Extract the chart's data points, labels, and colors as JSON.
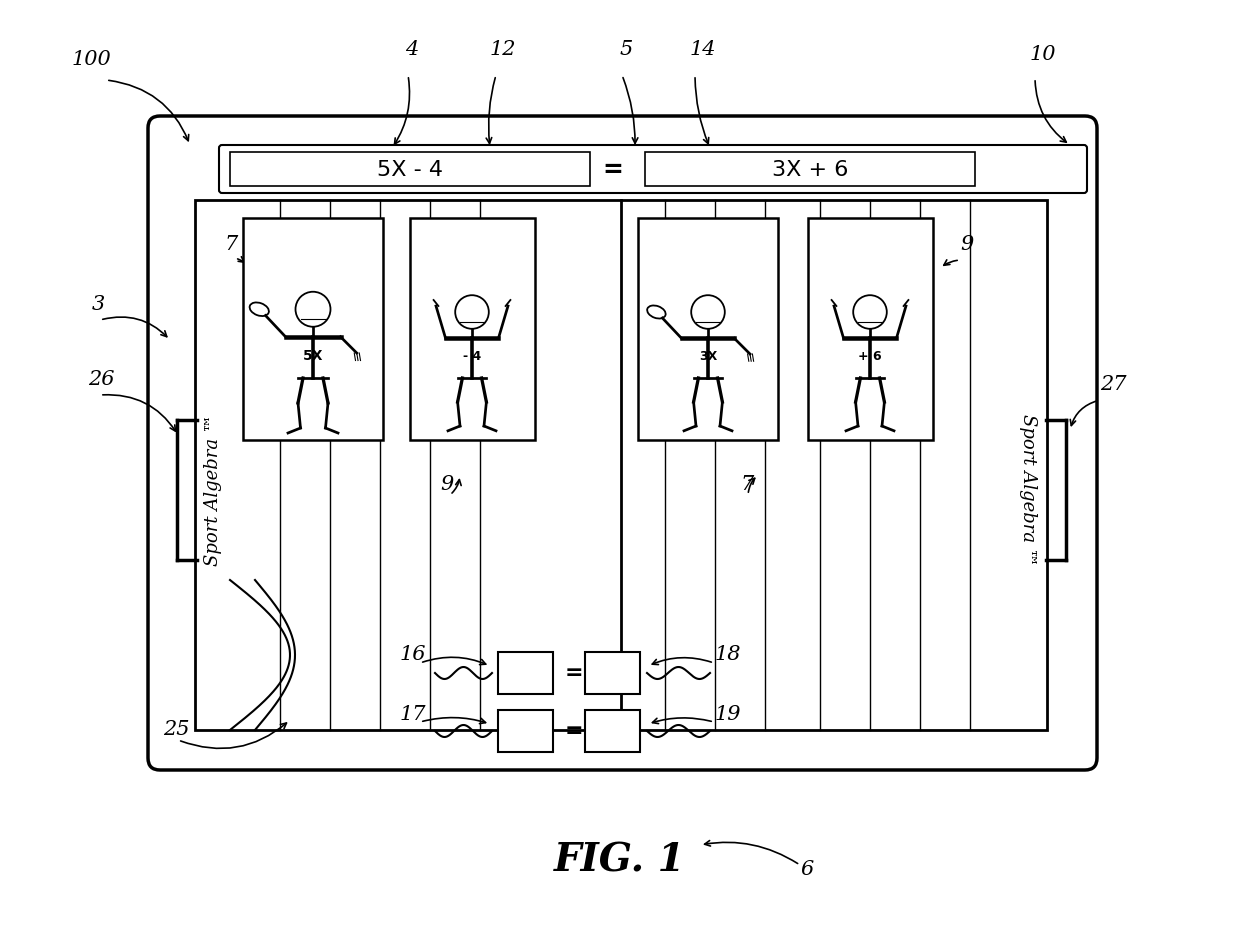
{
  "bg_color": "#ffffff",
  "figure_title": "FIG. 1",
  "equation_left": "5X - 4",
  "equation_right": "3X + 6",
  "equation_equals": "=",
  "left_label": "Sport Algebra",
  "right_label": "Sport Algebra",
  "tm_symbol": "™"
}
